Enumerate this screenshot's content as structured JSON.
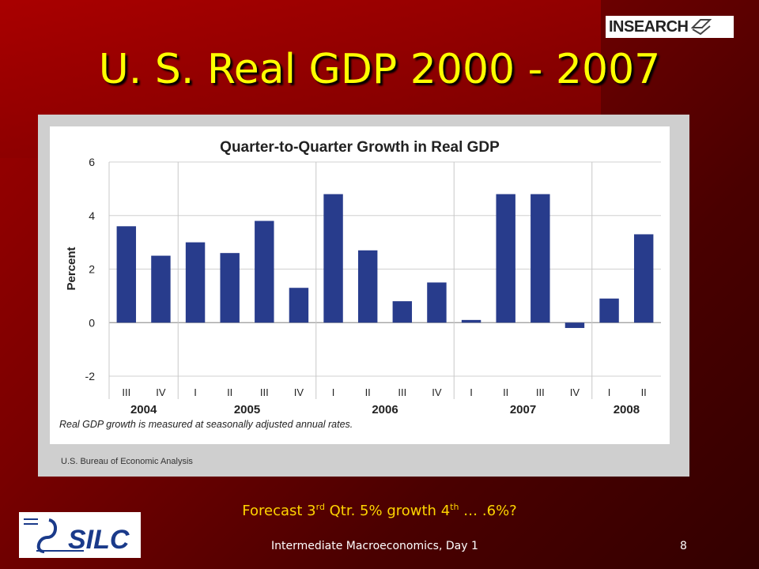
{
  "slide": {
    "title": "U. S. Real GDP 2000 - 2007",
    "top_logo_text": "INSEARCH",
    "forecast_pre": "Forecast 3",
    "forecast_sup1": "rd",
    "forecast_mid": " Qtr. 5% growth 4",
    "forecast_sup2": "th",
    "forecast_post": " … .6%?",
    "footer": "Intermediate  Macroeconomics, Day 1",
    "page_number": "8",
    "bottom_logo_text": "SILC",
    "source": "U.S. Bureau of Economic Analysis"
  },
  "chart_data": {
    "type": "bar",
    "title": "Quarter-to-Quarter Growth in Real GDP",
    "ylabel": "Percent",
    "xlabel": "",
    "note": "Real GDP growth is measured at seasonally adjusted annual rates.",
    "ylim": [
      -2,
      6
    ],
    "yticks": [
      "6",
      "4",
      "2",
      "0",
      "-2"
    ],
    "categories": [
      "III",
      "IV",
      "I",
      "II",
      "III",
      "IV",
      "I",
      "II",
      "III",
      "IV",
      "I",
      "II",
      "III",
      "IV",
      "I",
      "II"
    ],
    "years": [
      {
        "label": "2004",
        "start": 0,
        "end": 1
      },
      {
        "label": "2005",
        "start": 2,
        "end": 5
      },
      {
        "label": "2006",
        "start": 6,
        "end": 9
      },
      {
        "label": "2007",
        "start": 10,
        "end": 13
      },
      {
        "label": "2008",
        "start": 14,
        "end": 15
      }
    ],
    "values": [
      3.6,
      2.5,
      3.0,
      2.6,
      3.8,
      1.3,
      4.8,
      2.7,
      0.8,
      1.5,
      0.1,
      4.8,
      4.8,
      -0.2,
      0.9,
      3.3
    ],
    "bar_color": "#283c8c",
    "grid": true
  }
}
